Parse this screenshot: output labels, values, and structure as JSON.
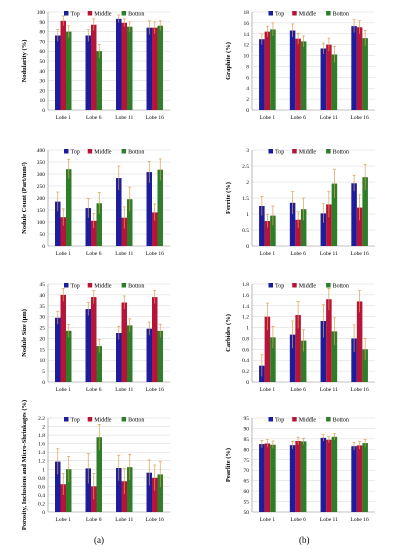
{
  "colors": {
    "top": "#1c1c9c",
    "middle": "#b8143a",
    "bottom": "#2e7d28",
    "error": "#d9a050",
    "axis": "#888888",
    "grid": "#d6d6d6"
  },
  "column_labels": [
    "(a)",
    "(b)"
  ],
  "chart_data": [
    {
      "type": "bar",
      "panel": "a1",
      "ylabel": "Nodularity (%)",
      "categories": [
        "Lobe 1",
        "Lobe 6",
        "Lobe 11",
        "Lobe 16"
      ],
      "yticks": [
        "0",
        "10",
        "20",
        "30",
        "40",
        "50",
        "60",
        "70",
        "80",
        "90",
        "100"
      ],
      "ylim": [
        0,
        100
      ],
      "series": [
        {
          "name": "Top",
          "values": [
            76,
            76,
            93,
            84
          ],
          "errors": [
            6,
            6,
            4,
            7
          ]
        },
        {
          "name": "Middle",
          "values": [
            91,
            87,
            89,
            84
          ],
          "errors": [
            5,
            6,
            4,
            6
          ]
        },
        {
          "name": "Botton",
          "values": [
            80,
            60,
            85,
            86
          ],
          "errors": [
            6,
            7,
            5,
            5
          ]
        }
      ],
      "legend": "top"
    },
    {
      "type": "bar",
      "panel": "b1",
      "ylabel": "Graphite (%)",
      "categories": [
        "Lobe 1",
        "Lobe 6",
        "Lobe 11",
        "Lobe 16"
      ],
      "yticks": [
        "0",
        "2",
        "4",
        "6",
        "8",
        "10",
        "12",
        "14",
        "16",
        "18"
      ],
      "ylim": [
        0,
        18
      ],
      "series": [
        {
          "name": "Top",
          "values": [
            13,
            14.6,
            11.3,
            15.4
          ],
          "errors": [
            1.0,
            1.2,
            1.0,
            1.2
          ]
        },
        {
          "name": "Middle",
          "values": [
            14.4,
            13.1,
            12,
            15.2
          ],
          "errors": [
            1.0,
            1.0,
            1.2,
            1.2
          ]
        },
        {
          "name": "Botton",
          "values": [
            14.8,
            12.6,
            10.2,
            13.2
          ],
          "errors": [
            1.2,
            1.0,
            1.5,
            1.4
          ]
        }
      ],
      "legend": "top"
    },
    {
      "type": "bar",
      "panel": "a2",
      "ylabel": "Nodule Count (Part/mm²)",
      "categories": [
        "Lobe 1",
        "Lobe 6",
        "Lobe 11",
        "Lobe 16"
      ],
      "yticks": [
        "0",
        "50",
        "100",
        "150",
        "200",
        "250",
        "300",
        "350",
        "400"
      ],
      "ylim": [
        0,
        400
      ],
      "series": [
        {
          "name": "Top",
          "values": [
            185,
            158,
            283,
            308
          ],
          "errors": [
            40,
            40,
            50,
            45
          ]
        },
        {
          "name": "Middle",
          "values": [
            120,
            105,
            118,
            140
          ],
          "errors": [
            35,
            30,
            45,
            35
          ]
        },
        {
          "name": "Botton",
          "values": [
            320,
            178,
            195,
            318
          ],
          "errors": [
            40,
            45,
            50,
            45
          ]
        }
      ],
      "legend": "top"
    },
    {
      "type": "bar",
      "panel": "b2",
      "ylabel": "Ferrite (%)",
      "categories": [
        "Lobe 1",
        "Lobe 6",
        "Lobe 11",
        "Lobe 16"
      ],
      "yticks": [
        "0",
        "0.5",
        "1",
        "1.5",
        "2",
        "2.5",
        "3"
      ],
      "ylim": [
        0,
        3
      ],
      "series": [
        {
          "name": "Top",
          "values": [
            1.25,
            1.35,
            1.02,
            1.96
          ],
          "errors": [
            0.3,
            0.35,
            0.3,
            0.25
          ]
        },
        {
          "name": "Middle",
          "values": [
            0.78,
            0.82,
            1.3,
            1.2
          ],
          "errors": [
            0.2,
            0.25,
            0.4,
            0.4
          ]
        },
        {
          "name": "Botton",
          "values": [
            0.95,
            1.15,
            1.95,
            2.15
          ],
          "errors": [
            0.3,
            0.35,
            0.45,
            0.4
          ]
        }
      ],
      "legend": "top"
    },
    {
      "type": "bar",
      "panel": "a3",
      "ylabel": "Nodule Size (µm)",
      "categories": [
        "Lobe 1",
        "Lobe 6",
        "Lobe 11",
        "Lobe 16"
      ],
      "yticks": [
        "0",
        "5",
        "10",
        "15",
        "20",
        "25",
        "30",
        "35",
        "40",
        "45"
      ],
      "ylim": [
        0,
        45
      ],
      "series": [
        {
          "name": "Top",
          "values": [
            29.5,
            33.5,
            22.5,
            24.5
          ],
          "errors": [
            3,
            3,
            3,
            3
          ]
        },
        {
          "name": "Middle",
          "values": [
            40,
            39,
            36.5,
            39
          ],
          "errors": [
            3,
            3,
            3,
            3
          ]
        },
        {
          "name": "Botton",
          "values": [
            23.5,
            16.5,
            26,
            23.5
          ],
          "errors": [
            3,
            3,
            3,
            3
          ]
        }
      ],
      "legend": "top"
    },
    {
      "type": "bar",
      "panel": "b3",
      "ylabel": "Carbides (%)",
      "categories": [
        "Lobe 1",
        "Lobe 6",
        "Lobe 11",
        "Lobe 16"
      ],
      "yticks": [
        "0",
        "0.2",
        "0.4",
        "0.6",
        "0.8",
        "1",
        "1.2",
        "1.4",
        "1.6",
        "1.8"
      ],
      "ylim": [
        0,
        1.8
      ],
      "series": [
        {
          "name": "Top",
          "values": [
            0.3,
            0.87,
            1.12,
            0.8
          ],
          "errors": [
            0.2,
            0.25,
            0.3,
            0.25
          ]
        },
        {
          "name": "Middle",
          "values": [
            1.2,
            1.23,
            1.52,
            1.48
          ],
          "errors": [
            0.25,
            0.25,
            0.2,
            0.2
          ]
        },
        {
          "name": "Botton",
          "values": [
            0.82,
            0.76,
            0.93,
            0.6
          ],
          "errors": [
            0.2,
            0.2,
            0.25,
            0.2
          ]
        }
      ],
      "legend": "top"
    },
    {
      "type": "bar",
      "panel": "a4",
      "ylabel": "Porosity, Inclusions and Micro-Shrinkages (%)",
      "categories": [
        "Lobe 1",
        "Lobe 6",
        "Lobe 11",
        "Lobe 16"
      ],
      "yticks": [
        "0",
        "0.2",
        "0.4",
        "0.6",
        "0.8",
        "1",
        "1.2",
        "1.4",
        "1.6",
        "1.8",
        "2",
        "2.2"
      ],
      "ylim": [
        0,
        2.2
      ],
      "series": [
        {
          "name": "Top",
          "values": [
            1.18,
            1.02,
            1.03,
            0.92
          ],
          "errors": [
            0.3,
            0.35,
            0.3,
            0.3
          ]
        },
        {
          "name": "Middle",
          "values": [
            0.65,
            0.6,
            0.72,
            0.8
          ],
          "errors": [
            0.25,
            0.3,
            0.3,
            0.3
          ]
        },
        {
          "name": "Botton",
          "values": [
            1.0,
            1.75,
            1.05,
            0.88
          ],
          "errors": [
            0.3,
            0.3,
            0.3,
            0.3
          ]
        }
      ],
      "legend": "top"
    },
    {
      "type": "bar",
      "panel": "b4",
      "ylabel": "Pearlite (%)",
      "categories": [
        "Lobe 1",
        "Lobe 6",
        "Lobe 11",
        "Lobe 16"
      ],
      "yticks": [
        "50",
        "55",
        "60",
        "65",
        "70",
        "75",
        "80",
        "85",
        "90",
        "95"
      ],
      "ylim": [
        50,
        95
      ],
      "series": [
        {
          "name": "Top",
          "values": [
            82.5,
            82,
            85.5,
            81.5
          ],
          "errors": [
            1.8,
            1.8,
            1.5,
            1.8
          ]
        },
        {
          "name": "Middle",
          "values": [
            82.8,
            84,
            84.6,
            81.9
          ],
          "errors": [
            1.8,
            1.8,
            1.5,
            1.8
          ]
        },
        {
          "name": "Botton",
          "values": [
            82.2,
            83.8,
            86,
            83
          ],
          "errors": [
            1.8,
            1.5,
            1.5,
            1.8
          ]
        }
      ],
      "legend": "top"
    }
  ]
}
